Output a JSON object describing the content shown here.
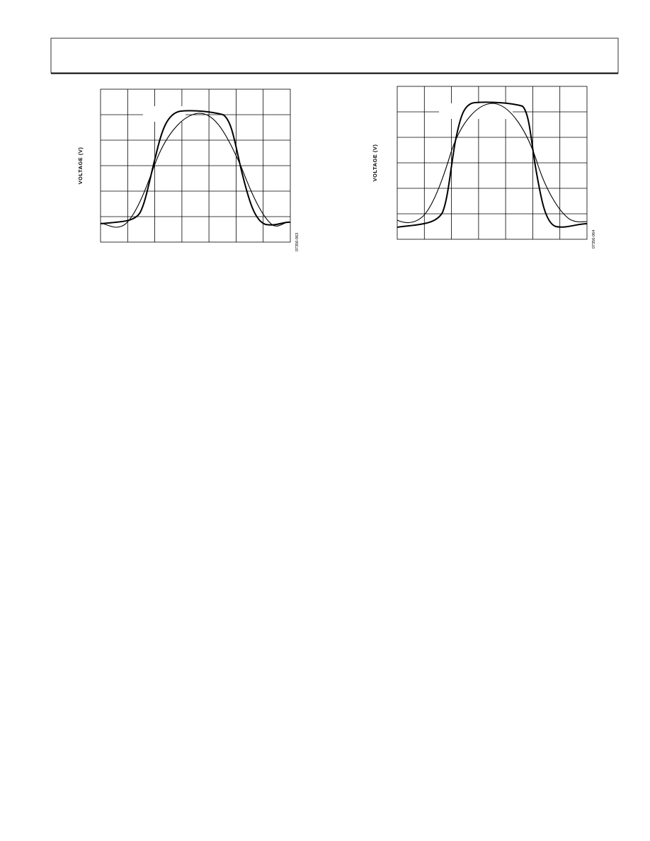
{
  "figures": [
    {
      "y_axis_label": "VOLTAGE (V)",
      "figure_id": "07356-063"
    },
    {
      "y_axis_label": "VOLTAGE (V)",
      "figure_id": "07356-064"
    }
  ]
}
